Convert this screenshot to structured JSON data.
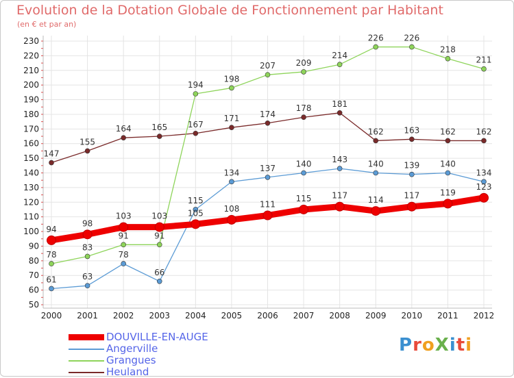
{
  "title": "Evolution de la Dotation Globale de Fonctionnement par Habitant",
  "subtitle": "(en € et par an)",
  "logo": {
    "text": "ProXiti",
    "letters": [
      {
        "ch": "P",
        "color": "#3a8fd0"
      },
      {
        "ch": "r",
        "color": "#e84a3a"
      },
      {
        "ch": "o",
        "color": "#f0a020"
      },
      {
        "ch": "X",
        "color": "#6ab04c"
      },
      {
        "ch": "i",
        "color": "#3a8fd0"
      },
      {
        "ch": "t",
        "color": "#e84a3a"
      },
      {
        "ch": "i",
        "color": "#f0a020"
      }
    ]
  },
  "chart_data": {
    "type": "line",
    "categories": [
      "2000",
      "2001",
      "2002",
      "2003",
      "2004",
      "2005",
      "2006",
      "2007",
      "2008",
      "2009",
      "2010",
      "2011",
      "2012"
    ],
    "ylim": [
      50,
      230
    ],
    "yticks": [
      50,
      60,
      70,
      80,
      90,
      100,
      110,
      120,
      130,
      140,
      150,
      160,
      170,
      180,
      190,
      200,
      210,
      220,
      230
    ],
    "grid": true,
    "legend_position": "bottom-left",
    "series": [
      {
        "name": "Heuland",
        "color": "#7a2a2a",
        "values": [
          147,
          155,
          164,
          165,
          167,
          171,
          174,
          178,
          181,
          162,
          163,
          162,
          162
        ]
      },
      {
        "name": "Grangues",
        "color": "#8ed45a",
        "values": [
          78,
          83,
          91,
          91,
          194,
          198,
          207,
          209,
          214,
          226,
          226,
          218,
          211
        ]
      },
      {
        "name": "Angerville",
        "color": "#5b9bd5",
        "values": [
          61,
          63,
          78,
          66,
          115,
          134,
          137,
          140,
          143,
          140,
          139,
          140,
          134
        ]
      },
      {
        "name": "DOUVILLE-EN-AUGE",
        "color": "#ee0000",
        "values": [
          94,
          98,
          103,
          103,
          105,
          108,
          111,
          115,
          117,
          114,
          117,
          119,
          123
        ]
      }
    ]
  }
}
